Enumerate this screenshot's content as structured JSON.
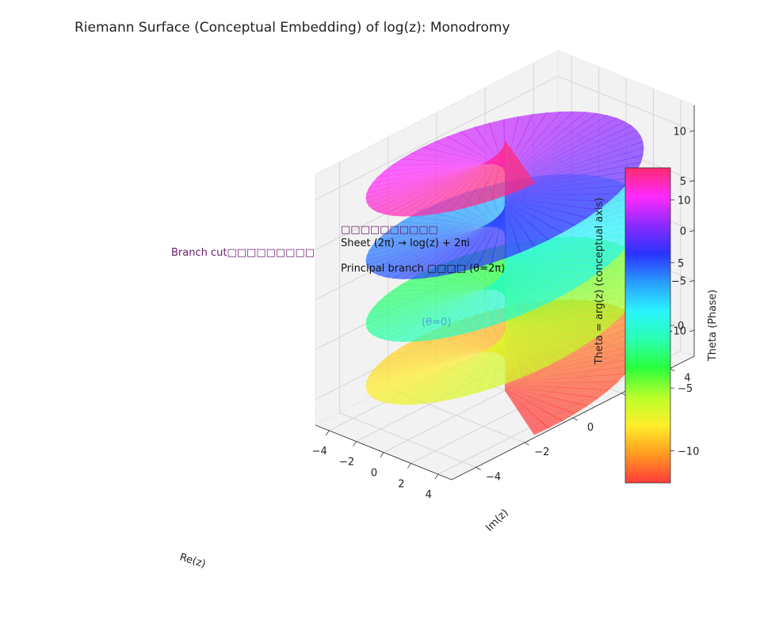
{
  "chart_data": {
    "type": "surface3d",
    "title": "Riemann Surface (Conceptual Embedding) of log(z): Monodromy",
    "xlabel": "Re(z)",
    "ylabel": "Im(z)",
    "zlabel": "Theta = arg(z)  (conceptual axis)",
    "xlim": [
      -5,
      5
    ],
    "ylim": [
      -5,
      5
    ],
    "zlim": [
      -12.566,
      12.566
    ],
    "x_ticks": [
      -4,
      -2,
      0,
      2,
      4
    ],
    "y_ticks": [
      -4,
      -2,
      0,
      2,
      4
    ],
    "z_ticks": [
      -10,
      -5,
      0,
      5,
      10
    ],
    "x_tick_labels": [
      "−4",
      "−2",
      "0",
      "2",
      "4"
    ],
    "y_tick_labels": [
      "−4",
      "−2",
      "0",
      "2",
      "4"
    ],
    "z_tick_labels": [
      "−10",
      "−5",
      "0",
      "5",
      "10"
    ],
    "surface": {
      "description_equation": "r in [0, 5], theta in [-4pi, 4pi], z = theta",
      "r_max": 5,
      "theta_range": [
        -12.566,
        12.566
      ],
      "sheets": 4,
      "alpha": 0.7
    },
    "colorbar": {
      "label": "Theta (Phase)",
      "range": [
        -12.566,
        12.566
      ],
      "ticks": [
        -10,
        -5,
        0,
        5,
        10
      ],
      "tick_labels": [
        "−10",
        "−5",
        "0",
        "5",
        "10"
      ],
      "colormap": "hsv",
      "stops": [
        "#ff3a3a",
        "#ff9a1f",
        "#ffee2a",
        "#b8ff2a",
        "#2aff3a",
        "#2affb0",
        "#2af5ff",
        "#2a9dff",
        "#2a33ff",
        "#8a2aff",
        "#ff2aff",
        "#ff2a6e"
      ]
    },
    "annotations": [
      {
        "name": "annotation-sheet-label",
        "text": "□□□□□□□□□□"
      },
      {
        "name": "annotation-monodromy",
        "text": "Sheet (2π) → log(z) + 2πi"
      },
      {
        "name": "annotation-branch-cut",
        "text": "Branch cut□□□□□□□□□"
      },
      {
        "name": "annotation-theta-2pi",
        "text": "Principal branch □□□□ (θ=2π)"
      },
      {
        "name": "annotation-theta-0",
        "text": "(θ=0)"
      }
    ]
  }
}
